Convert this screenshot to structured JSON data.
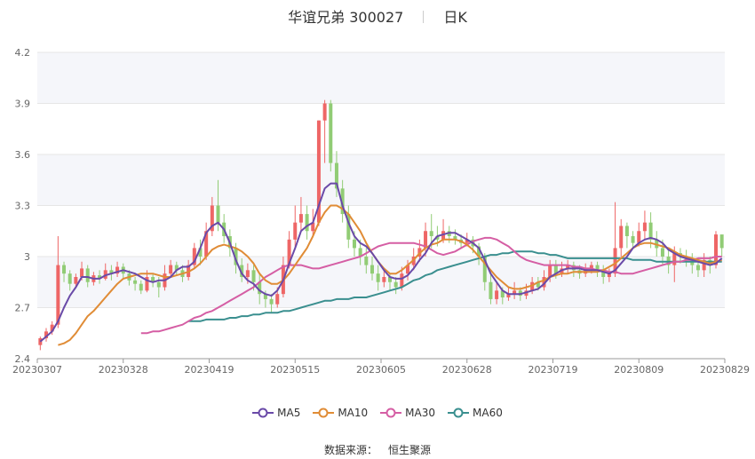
{
  "header": {
    "name": "华谊兄弟 300027",
    "period": "日K"
  },
  "source": {
    "label": "数据来源：",
    "value": "恒生聚源"
  },
  "colors": {
    "up": "#ee6666",
    "down": "#91cc75",
    "ma5": "#6a4aa8",
    "ma10": "#e08c36",
    "ma30": "#d55ea4",
    "ma60": "#3a8f8f",
    "grid": "#e6e6e6",
    "band": "#f5f6fa"
  },
  "chart_data": {
    "type": "candlestick",
    "ylim": [
      2.4,
      4.2
    ],
    "yticks": [
      "2.4",
      "2.7",
      "3",
      "3.3",
      "3.6",
      "3.9",
      "4.2"
    ],
    "xtick_labels": [
      "20230307",
      "20230328",
      "20230419",
      "20230515",
      "20230605",
      "20230628",
      "20230719",
      "20230809",
      "20230829"
    ],
    "legend": [
      "MA5",
      "MA10",
      "MA30",
      "MA60"
    ],
    "candles": [
      [
        2.48,
        2.52,
        2.45,
        2.53
      ],
      [
        2.52,
        2.56,
        2.5,
        2.58
      ],
      [
        2.56,
        2.6,
        2.54,
        2.62
      ],
      [
        2.6,
        2.95,
        2.58,
        3.12
      ],
      [
        2.95,
        2.9,
        2.85,
        2.97
      ],
      [
        2.9,
        2.84,
        2.8,
        2.92
      ],
      [
        2.84,
        2.88,
        2.82,
        2.9
      ],
      [
        2.88,
        2.93,
        2.86,
        2.97
      ],
      [
        2.93,
        2.85,
        2.82,
        2.95
      ],
      [
        2.85,
        2.89,
        2.83,
        2.91
      ],
      [
        2.89,
        2.87,
        2.84,
        2.92
      ],
      [
        2.87,
        2.92,
        2.86,
        2.96
      ],
      [
        2.92,
        2.9,
        2.86,
        2.95
      ],
      [
        2.9,
        2.94,
        2.88,
        2.97
      ],
      [
        2.94,
        2.9,
        2.87,
        2.96
      ],
      [
        2.9,
        2.86,
        2.83,
        2.92
      ],
      [
        2.86,
        2.84,
        2.8,
        2.88
      ],
      [
        2.84,
        2.8,
        2.78,
        2.86
      ],
      [
        2.8,
        2.88,
        2.79,
        2.92
      ],
      [
        2.88,
        2.85,
        2.82,
        2.9
      ],
      [
        2.85,
        2.82,
        2.76,
        2.88
      ],
      [
        2.82,
        2.9,
        2.8,
        2.95
      ],
      [
        2.9,
        2.95,
        2.88,
        2.98
      ],
      [
        2.95,
        2.92,
        2.89,
        2.97
      ],
      [
        2.92,
        2.88,
        2.85,
        2.95
      ],
      [
        2.88,
        2.95,
        2.86,
        2.98
      ],
      [
        2.95,
        3.05,
        2.93,
        3.08
      ],
      [
        3.05,
        3.0,
        2.95,
        3.1
      ],
      [
        3.0,
        3.15,
        2.98,
        3.2
      ],
      [
        3.15,
        3.3,
        3.12,
        3.35
      ],
      [
        3.3,
        3.2,
        3.15,
        3.45
      ],
      [
        3.2,
        3.12,
        3.08,
        3.25
      ],
      [
        3.12,
        3.05,
        3.0,
        3.16
      ],
      [
        3.05,
        2.95,
        2.9,
        3.08
      ],
      [
        2.95,
        2.88,
        2.85,
        2.99
      ],
      [
        2.88,
        2.92,
        2.84,
        2.96
      ],
      [
        2.92,
        2.85,
        2.8,
        2.95
      ],
      [
        2.85,
        2.78,
        2.72,
        2.9
      ],
      [
        2.78,
        2.75,
        2.7,
        2.8
      ],
      [
        2.75,
        2.72,
        2.67,
        2.78
      ],
      [
        2.72,
        2.78,
        2.7,
        2.82
      ],
      [
        2.78,
        2.95,
        2.76,
        3.0
      ],
      [
        2.95,
        3.1,
        2.93,
        3.15
      ],
      [
        3.1,
        3.2,
        3.05,
        3.3
      ],
      [
        3.2,
        3.25,
        3.15,
        3.35
      ],
      [
        3.25,
        3.15,
        3.1,
        3.3
      ],
      [
        3.15,
        3.2,
        3.12,
        3.28
      ],
      [
        3.2,
        3.8,
        3.18,
        3.8
      ],
      [
        3.8,
        3.9,
        3.55,
        3.92
      ],
      [
        3.9,
        3.55,
        3.5,
        3.92
      ],
      [
        3.55,
        3.4,
        3.35,
        3.62
      ],
      [
        3.4,
        3.25,
        3.2,
        3.45
      ],
      [
        3.25,
        3.1,
        3.05,
        3.3
      ],
      [
        3.1,
        3.05,
        3.0,
        3.15
      ],
      [
        3.05,
        3.0,
        2.95,
        3.1
      ],
      [
        3.0,
        2.95,
        2.9,
        3.05
      ],
      [
        2.95,
        2.9,
        2.86,
        3.0
      ],
      [
        2.9,
        2.85,
        2.8,
        2.95
      ],
      [
        2.85,
        2.88,
        2.82,
        2.92
      ],
      [
        2.88,
        2.85,
        2.8,
        2.9
      ],
      [
        2.85,
        2.82,
        2.78,
        2.88
      ],
      [
        2.82,
        2.9,
        2.8,
        2.94
      ],
      [
        2.9,
        2.95,
        2.86,
        2.98
      ],
      [
        2.95,
        3.0,
        2.92,
        3.05
      ],
      [
        3.0,
        3.05,
        2.97,
        3.1
      ],
      [
        3.05,
        3.15,
        3.0,
        3.2
      ],
      [
        3.15,
        3.12,
        3.05,
        3.25
      ],
      [
        3.12,
        3.1,
        3.06,
        3.18
      ],
      [
        3.1,
        3.15,
        3.08,
        3.22
      ],
      [
        3.15,
        3.12,
        3.08,
        3.18
      ],
      [
        3.12,
        3.1,
        3.07,
        3.16
      ],
      [
        3.1,
        3.08,
        3.05,
        3.13
      ],
      [
        3.08,
        3.1,
        3.06,
        3.14
      ],
      [
        3.1,
        3.06,
        3.02,
        3.12
      ],
      [
        3.06,
        3.0,
        2.95,
        3.08
      ],
      [
        3.0,
        2.85,
        2.8,
        3.02
      ],
      [
        2.85,
        2.75,
        2.72,
        2.9
      ],
      [
        2.75,
        2.8,
        2.72,
        2.85
      ],
      [
        2.8,
        2.76,
        2.72,
        2.82
      ],
      [
        2.76,
        2.78,
        2.74,
        2.82
      ],
      [
        2.78,
        2.8,
        2.75,
        2.85
      ],
      [
        2.8,
        2.77,
        2.74,
        2.82
      ],
      [
        2.77,
        2.8,
        2.75,
        2.84
      ],
      [
        2.8,
        2.85,
        2.78,
        2.88
      ],
      [
        2.85,
        2.82,
        2.8,
        2.88
      ],
      [
        2.82,
        2.88,
        2.8,
        2.92
      ],
      [
        2.88,
        2.95,
        2.85,
        2.98
      ],
      [
        2.95,
        2.9,
        2.87,
        2.98
      ],
      [
        2.9,
        2.93,
        2.88,
        2.97
      ],
      [
        2.93,
        2.95,
        2.9,
        2.98
      ],
      [
        2.95,
        2.92,
        2.88,
        2.97
      ],
      [
        2.92,
        2.9,
        2.87,
        2.95
      ],
      [
        2.9,
        2.93,
        2.88,
        2.96
      ],
      [
        2.93,
        2.95,
        2.9,
        2.97
      ],
      [
        2.95,
        2.92,
        2.88,
        2.97
      ],
      [
        2.92,
        2.88,
        2.84,
        2.95
      ],
      [
        2.88,
        2.9,
        2.85,
        2.93
      ],
      [
        2.9,
        3.05,
        2.88,
        3.32
      ],
      [
        3.05,
        3.18,
        3.0,
        3.22
      ],
      [
        3.18,
        3.12,
        3.05,
        3.2
      ],
      [
        3.12,
        3.08,
        3.05,
        3.15
      ],
      [
        3.08,
        3.15,
        3.06,
        3.2
      ],
      [
        3.15,
        3.2,
        3.1,
        3.27
      ],
      [
        3.2,
        3.1,
        3.05,
        3.26
      ],
      [
        3.1,
        3.05,
        3.0,
        3.15
      ],
      [
        3.05,
        3.0,
        2.95,
        3.1
      ],
      [
        3.0,
        2.95,
        2.9,
        3.05
      ],
      [
        2.95,
        3.02,
        2.85,
        3.06
      ],
      [
        3.02,
        3.0,
        2.96,
        3.05
      ],
      [
        3.0,
        2.98,
        2.94,
        3.04
      ],
      [
        2.98,
        2.95,
        2.9,
        3.02
      ],
      [
        2.95,
        2.92,
        2.88,
        2.99
      ],
      [
        2.92,
        2.98,
        2.88,
        3.02
      ],
      [
        2.98,
        2.95,
        2.9,
        3.0
      ],
      [
        2.95,
        3.13,
        2.93,
        3.15
      ],
      [
        3.13,
        3.05,
        3.0,
        3.12
      ]
    ],
    "ma5": [
      2.5,
      2.53,
      2.56,
      2.62,
      2.7,
      2.77,
      2.82,
      2.88,
      2.88,
      2.87,
      2.87,
      2.89,
      2.9,
      2.91,
      2.92,
      2.91,
      2.9,
      2.88,
      2.86,
      2.85,
      2.86,
      2.86,
      2.88,
      2.92,
      2.94,
      2.94,
      2.97,
      3.05,
      3.14,
      3.18,
      3.2,
      3.16,
      3.08,
      2.98,
      2.9,
      2.86,
      2.84,
      2.8,
      2.78,
      2.77,
      2.8,
      2.86,
      2.96,
      3.05,
      3.15,
      3.18,
      3.2,
      3.3,
      3.4,
      3.43,
      3.43,
      3.3,
      3.2,
      3.12,
      3.08,
      3.06,
      3.02,
      2.97,
      2.92,
      2.88,
      2.87,
      2.87,
      2.89,
      2.93,
      2.98,
      3.02,
      3.08,
      3.12,
      3.13,
      3.14,
      3.14,
      3.12,
      3.1,
      3.08,
      3.05,
      2.98,
      2.9,
      2.85,
      2.8,
      2.78,
      2.78,
      2.78,
      2.79,
      2.8,
      2.81,
      2.84,
      2.88,
      2.9,
      2.92,
      2.93,
      2.93,
      2.93,
      2.92,
      2.92,
      2.92,
      2.91,
      2.9,
      2.92,
      2.96,
      3.0,
      3.05,
      3.08,
      3.1,
      3.11,
      3.1,
      3.08,
      3.04,
      3.02,
      3.0,
      2.99,
      2.98,
      2.97,
      2.96,
      2.95,
      2.96,
      2.99
    ],
    "ma10": [
      2.48,
      2.49,
      2.51,
      2.55,
      2.6,
      2.65,
      2.68,
      2.72,
      2.76,
      2.8,
      2.84,
      2.87,
      2.88,
      2.89,
      2.9,
      2.9,
      2.9,
      2.89,
      2.88,
      2.88,
      2.89,
      2.9,
      2.91,
      2.93,
      2.96,
      3.0,
      3.04,
      3.06,
      3.07,
      3.06,
      3.05,
      3.03,
      3.0,
      2.96,
      2.9,
      2.86,
      2.84,
      2.84,
      2.86,
      2.9,
      2.95,
      3.0,
      3.05,
      3.12,
      3.2,
      3.26,
      3.3,
      3.3,
      3.28,
      3.25,
      3.2,
      3.15,
      3.08,
      3.02,
      2.97,
      2.93,
      2.9,
      2.9,
      2.92,
      2.95,
      2.98,
      3.02,
      3.05,
      3.07,
      3.08,
      3.1,
      3.1,
      3.1,
      3.09,
      3.07,
      3.04,
      3.0,
      2.96,
      2.92,
      2.88,
      2.85,
      2.82,
      2.81,
      2.81,
      2.82,
      2.83,
      2.85,
      2.86,
      2.88,
      2.89,
      2.9,
      2.9,
      2.91,
      2.91,
      2.91,
      2.91,
      2.91,
      2.92,
      2.94,
      2.96,
      2.99,
      3.02,
      3.05,
      3.07,
      3.08,
      3.08,
      3.07,
      3.06,
      3.05,
      3.03,
      3.01,
      3.0,
      2.99,
      2.98,
      2.97,
      2.96,
      2.97,
      2.98
    ],
    "ma30": [
      2.55,
      2.55,
      2.56,
      2.56,
      2.57,
      2.58,
      2.59,
      2.6,
      2.62,
      2.64,
      2.65,
      2.67,
      2.68,
      2.7,
      2.72,
      2.74,
      2.76,
      2.78,
      2.8,
      2.82,
      2.85,
      2.88,
      2.9,
      2.92,
      2.94,
      2.95,
      2.95,
      2.95,
      2.94,
      2.93,
      2.93,
      2.94,
      2.95,
      2.96,
      2.97,
      2.98,
      2.99,
      3.0,
      3.02,
      3.04,
      3.06,
      3.07,
      3.08,
      3.08,
      3.08,
      3.08,
      3.08,
      3.07,
      3.06,
      3.04,
      3.02,
      3.01,
      3.02,
      3.03,
      3.05,
      3.07,
      3.09,
      3.1,
      3.11,
      3.11,
      3.1,
      3.08,
      3.06,
      3.03,
      3.0,
      2.98,
      2.97,
      2.96,
      2.95,
      2.95,
      2.95,
      2.95,
      2.95,
      2.94,
      2.94,
      2.93,
      2.93,
      2.92,
      2.92,
      2.91,
      2.91,
      2.9,
      2.9,
      2.9,
      2.91,
      2.92,
      2.93,
      2.94,
      2.95,
      2.96,
      2.97,
      2.97,
      2.98,
      2.98,
      2.99,
      2.99,
      2.99,
      3.0,
      3.0
    ],
    "ma60": [
      2.62,
      2.62,
      2.62,
      2.63,
      2.63,
      2.63,
      2.63,
      2.64,
      2.64,
      2.65,
      2.65,
      2.66,
      2.66,
      2.67,
      2.67,
      2.67,
      2.68,
      2.68,
      2.69,
      2.7,
      2.71,
      2.72,
      2.73,
      2.74,
      2.74,
      2.75,
      2.75,
      2.75,
      2.76,
      2.76,
      2.76,
      2.77,
      2.78,
      2.79,
      2.8,
      2.81,
      2.82,
      2.84,
      2.86,
      2.87,
      2.89,
      2.9,
      2.92,
      2.93,
      2.94,
      2.95,
      2.96,
      2.97,
      2.98,
      2.99,
      3.0,
      3.01,
      3.01,
      3.02,
      3.02,
      3.03,
      3.03,
      3.03,
      3.03,
      3.02,
      3.02,
      3.01,
      3.01,
      3.0,
      2.99,
      2.99,
      2.99,
      2.99,
      2.99,
      2.99,
      2.99,
      2.99,
      2.99,
      2.99,
      2.99,
      2.98,
      2.98,
      2.98,
      2.98,
      2.97,
      2.97,
      2.97,
      2.97,
      2.97,
      2.97,
      2.97,
      2.97,
      2.97,
      2.97,
      2.97,
      2.97
    ]
  }
}
